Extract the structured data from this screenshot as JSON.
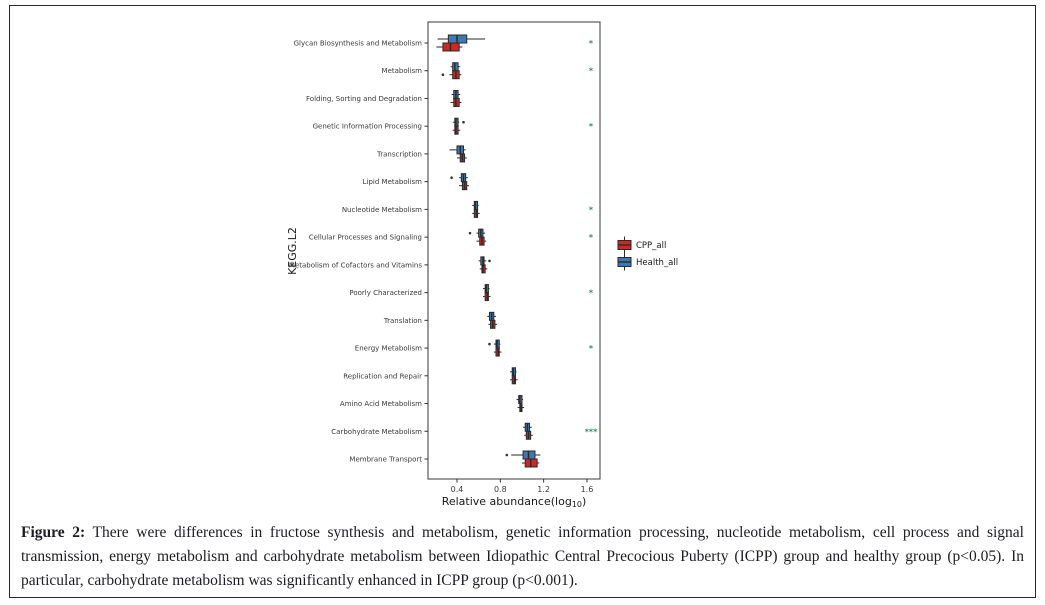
{
  "figure": {
    "caption_label": "Figure 2:",
    "caption_text": "There were differences in fructose synthesis and metabolism, genetic information processing, nucleotide metabolism, cell process and signal transmission, energy metabolism and carbohydrate metabolism between Idiopathic Central Precocious Puberty (ICPP) group and healthy group (p<0.05). In particular, carbohydrate metabolism was significantly enhanced in ICPP group (p<0.001)."
  },
  "chart_data": {
    "type": "boxplot-horizontal",
    "title": "",
    "xlabel_parts": {
      "prefix": "Relative abundance(log",
      "sub": "10",
      "suffix": ")"
    },
    "ylabel": "KEGG.L2",
    "x_ticks": [
      0.4,
      0.8,
      1.2,
      1.6
    ],
    "x_range": [
      0.13,
      1.72
    ],
    "grid": "off",
    "legend_position": "right",
    "colors": {
      "cpp": "#cf2823",
      "health": "#3c78b4",
      "box_border": "#2a2a2a",
      "panel_border": "#4a4a4a",
      "sig": "#2e8b57",
      "axis_text": "#3a3a3a",
      "title_text": "#1a1a1a"
    },
    "legend": [
      {
        "name": "CPP_all",
        "color": "#cf2823"
      },
      {
        "name": "Health_all",
        "color": "#3c78b4"
      }
    ],
    "categories": [
      {
        "label": "Glycan Biosynthesis and Metabolism",
        "sig": "*",
        "series": {
          "Health_all": {
            "box": [
              0.22,
              0.32,
              0.4,
              0.49,
              0.66
            ],
            "outliers": []
          },
          "CPP_all": {
            "box": [
              0.21,
              0.27,
              0.34,
              0.42,
              0.45
            ],
            "outliers": []
          }
        }
      },
      {
        "label": "Metabolism",
        "sig": "*",
        "series": {
          "Health_all": {
            "box": [
              0.34,
              0.36,
              0.38,
              0.41,
              0.43
            ],
            "outliers": []
          },
          "CPP_all": {
            "box": [
              0.33,
              0.36,
              0.39,
              0.42,
              0.44
            ],
            "outliers": [
              0.27
            ]
          }
        }
      },
      {
        "label": "Folding, Sorting and Degradation",
        "sig": "",
        "series": {
          "Health_all": {
            "box": [
              0.35,
              0.37,
              0.39,
              0.41,
              0.43
            ],
            "outliers": []
          },
          "CPP_all": {
            "box": [
              0.34,
              0.37,
              0.39,
              0.42,
              0.44
            ],
            "outliers": []
          }
        }
      },
      {
        "label": "Genetic Information Processing",
        "sig": "*",
        "series": {
          "Health_all": {
            "box": [
              0.36,
              0.38,
              0.39,
              0.41,
              0.42
            ],
            "outliers": [
              0.46
            ]
          },
          "CPP_all": {
            "box": [
              0.36,
              0.38,
              0.39,
              0.41,
              0.43
            ],
            "outliers": []
          }
        }
      },
      {
        "label": "Transcription",
        "sig": "",
        "series": {
          "Health_all": {
            "box": [
              0.33,
              0.4,
              0.43,
              0.46,
              0.48
            ],
            "outliers": []
          },
          "CPP_all": {
            "box": [
              0.4,
              0.43,
              0.45,
              0.47,
              0.49
            ],
            "outliers": []
          }
        }
      },
      {
        "label": "Lipid Metabolism",
        "sig": "",
        "series": {
          "Health_all": {
            "box": [
              0.42,
              0.44,
              0.46,
              0.48,
              0.5
            ],
            "outliers": [
              0.35
            ]
          },
          "CPP_all": {
            "box": [
              0.42,
              0.45,
              0.47,
              0.49,
              0.51
            ],
            "outliers": []
          }
        }
      },
      {
        "label": "Nucleotide Metabolism",
        "sig": "*",
        "series": {
          "Health_all": {
            "box": [
              0.54,
              0.56,
              0.57,
              0.59,
              0.6
            ],
            "outliers": []
          },
          "CPP_all": {
            "box": [
              0.54,
              0.56,
              0.58,
              0.59,
              0.61
            ],
            "outliers": []
          }
        }
      },
      {
        "label": "Cellular Processes and Signaling",
        "sig": "*",
        "series": {
          "Health_all": {
            "box": [
              0.58,
              0.6,
              0.62,
              0.64,
              0.66
            ],
            "outliers": [
              0.52
            ]
          },
          "CPP_all": {
            "box": [
              0.58,
              0.61,
              0.63,
              0.65,
              0.67
            ],
            "outliers": []
          }
        }
      },
      {
        "label": "Metabolism of Cofactors and Vitamins",
        "sig": "",
        "series": {
          "Health_all": {
            "box": [
              0.6,
              0.62,
              0.64,
              0.65,
              0.67
            ],
            "outliers": [
              0.7
            ]
          },
          "CPP_all": {
            "box": [
              0.61,
              0.63,
              0.64,
              0.66,
              0.68
            ],
            "outliers": []
          }
        }
      },
      {
        "label": "Poorly Characterized",
        "sig": "*",
        "series": {
          "Health_all": {
            "box": [
              0.64,
              0.66,
              0.67,
              0.69,
              0.7
            ],
            "outliers": []
          },
          "CPP_all": {
            "box": [
              0.64,
              0.66,
              0.68,
              0.69,
              0.71
            ],
            "outliers": []
          }
        }
      },
      {
        "label": "Translation",
        "sig": "",
        "series": {
          "Health_all": {
            "box": [
              0.68,
              0.7,
              0.72,
              0.74,
              0.76
            ],
            "outliers": []
          },
          "CPP_all": {
            "box": [
              0.69,
              0.71,
              0.73,
              0.75,
              0.77
            ],
            "outliers": []
          }
        }
      },
      {
        "label": "Energy Metabolism",
        "sig": "*",
        "series": {
          "Health_all": {
            "box": [
              0.74,
              0.76,
              0.77,
              0.79,
              0.8
            ],
            "outliers": [
              0.7
            ]
          },
          "CPP_all": {
            "box": [
              0.74,
              0.76,
              0.78,
              0.79,
              0.81
            ],
            "outliers": []
          }
        }
      },
      {
        "label": "Replication and Repair",
        "sig": "",
        "series": {
          "Health_all": {
            "box": [
              0.89,
              0.91,
              0.92,
              0.94,
              0.95
            ],
            "outliers": []
          },
          "CPP_all": {
            "box": [
              0.89,
              0.91,
              0.93,
              0.94,
              0.96
            ],
            "outliers": []
          }
        }
      },
      {
        "label": "Amino Acid Metabolism",
        "sig": "",
        "series": {
          "Health_all": {
            "box": [
              0.95,
              0.97,
              0.98,
              1.0,
              1.01
            ],
            "outliers": []
          },
          "CPP_all": {
            "box": [
              0.96,
              0.98,
              0.99,
              1.0,
              1.02
            ],
            "outliers": []
          }
        }
      },
      {
        "label": "Carbohydrate Metabolism",
        "sig": "***",
        "series": {
          "Health_all": {
            "box": [
              1.01,
              1.03,
              1.05,
              1.07,
              1.09
            ],
            "outliers": []
          },
          "CPP_all": {
            "box": [
              1.02,
              1.04,
              1.06,
              1.08,
              1.1
            ],
            "outliers": []
          }
        }
      },
      {
        "label": "Membrane Transport",
        "sig": "",
        "series": {
          "Health_all": {
            "box": [
              0.9,
              1.01,
              1.06,
              1.12,
              1.17
            ],
            "outliers": [
              0.86
            ]
          },
          "CPP_all": {
            "box": [
              1.0,
              1.03,
              1.08,
              1.14,
              1.16
            ],
            "outliers": []
          }
        }
      }
    ]
  }
}
